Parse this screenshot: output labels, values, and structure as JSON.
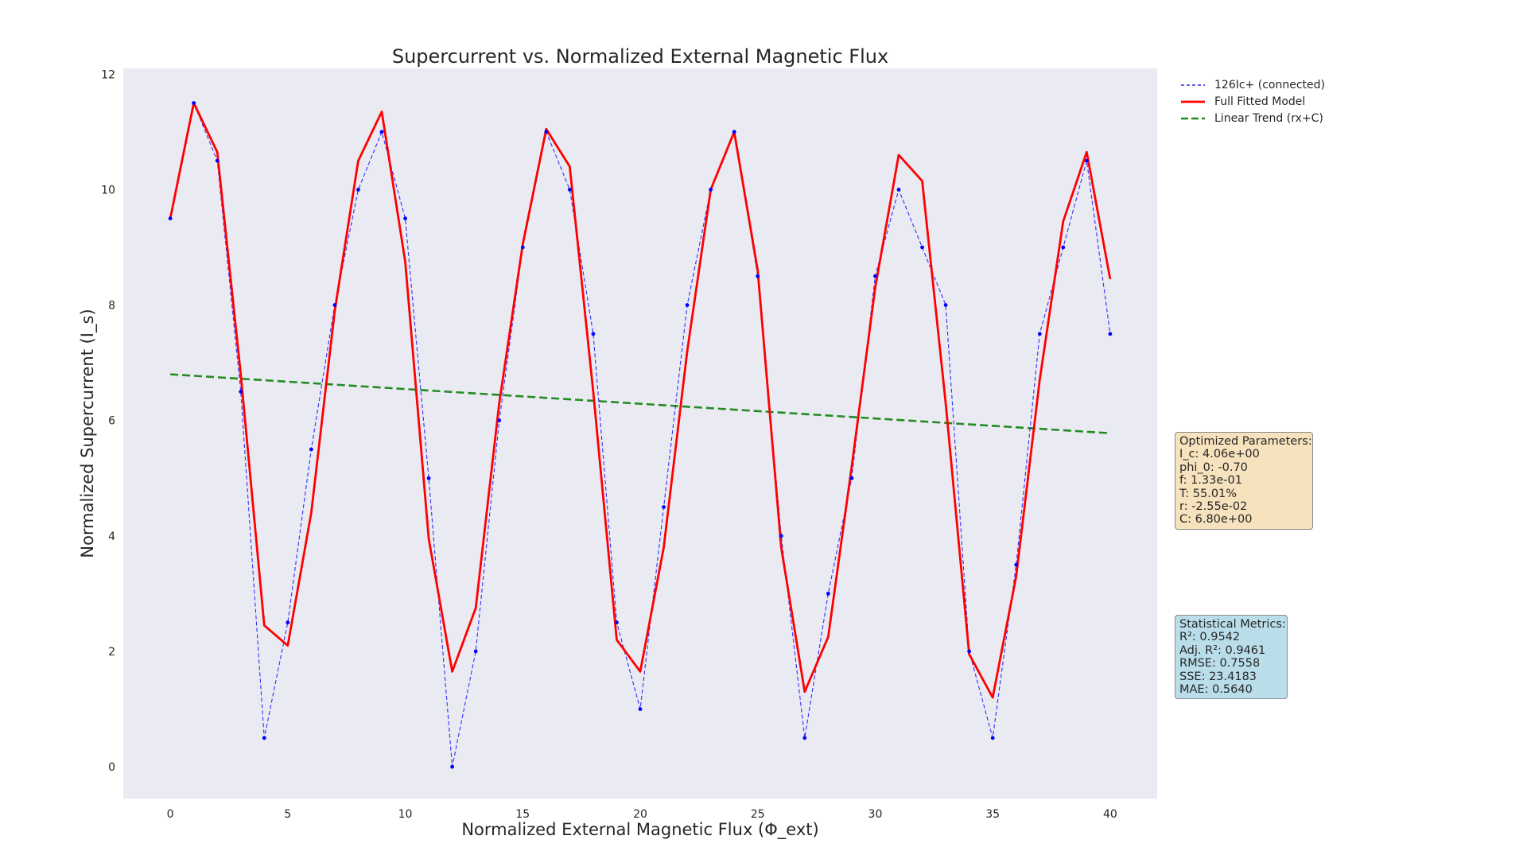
{
  "chart_data": {
    "type": "line",
    "title": "Supercurrent vs. Normalized External Magnetic Flux",
    "xlabel": "Normalized External Magnetic Flux (Φ_ext)",
    "ylabel": "Normalized Supercurrent (I_s)",
    "xlim": [
      -2,
      42
    ],
    "ylim": [
      -0.55,
      12.1
    ],
    "x_ticks": [
      0,
      5,
      10,
      15,
      20,
      25,
      30,
      35,
      40
    ],
    "y_ticks": [
      0,
      2,
      4,
      6,
      8,
      10,
      12
    ],
    "grid": false,
    "background": "#eaeaf2",
    "legend_position": "outside-right",
    "x": [
      0,
      1,
      2,
      3,
      4,
      5,
      6,
      7,
      8,
      9,
      10,
      11,
      12,
      13,
      14,
      15,
      16,
      17,
      18,
      19,
      20,
      21,
      22,
      23,
      24,
      25,
      26,
      27,
      28,
      29,
      30,
      31,
      32,
      33,
      34,
      35,
      36,
      37,
      38,
      39,
      40
    ],
    "series": [
      {
        "name": "126Ic+ (connected)",
        "style": "dashed",
        "color": "#0000ff",
        "markers": true,
        "values": [
          9.5,
          11.5,
          10.5,
          6.5,
          0.5,
          2.5,
          5.5,
          8.0,
          10.0,
          11.0,
          9.5,
          5.0,
          0.0,
          2.0,
          6.0,
          9.0,
          11.0,
          10.0,
          7.5,
          2.5,
          1.0,
          4.5,
          8.0,
          10.0,
          11.0,
          8.5,
          4.0,
          0.5,
          3.0,
          5.0,
          8.5,
          10.0,
          9.0,
          8.0,
          2.0,
          0.5,
          3.5,
          7.5,
          9.0,
          10.5,
          7.5
        ]
      },
      {
        "name": "Full Fitted Model",
        "style": "solid",
        "color": "#ff0000",
        "markers": false,
        "values": [
          9.5,
          11.5,
          10.65,
          6.8,
          2.45,
          2.1,
          4.4,
          7.9,
          10.5,
          11.35,
          8.75,
          3.95,
          1.65,
          2.75,
          6.3,
          9.05,
          11.05,
          10.4,
          6.5,
          2.2,
          1.65,
          3.8,
          7.2,
          10.0,
          11.0,
          8.6,
          3.8,
          1.3,
          2.25,
          5.2,
          8.3,
          10.6,
          10.15,
          6.3,
          1.95,
          1.2,
          3.3,
          6.7,
          9.45,
          10.65,
          8.45
        ]
      },
      {
        "name": "Linear Trend (rx+C)",
        "style": "dashed",
        "color": "#228b22",
        "markers": false,
        "slope": -0.0255,
        "intercept": 6.8
      }
    ],
    "annotations": [
      {
        "name": "params",
        "lines": [
          "Optimized Parameters:",
          "I_c: 4.06e+00",
          "phi_0: -0.70",
          "f: 1.33e-01",
          "T: 55.01%",
          "r: -2.55e-02",
          "C: 6.80e+00"
        ]
      },
      {
        "name": "metrics",
        "lines": [
          "Statistical Metrics:",
          "R²: 0.9542",
          "Adj. R²: 0.9461",
          "RMSE: 0.7558",
          "SSE: 23.4183",
          "MAE: 0.5640"
        ]
      }
    ]
  }
}
